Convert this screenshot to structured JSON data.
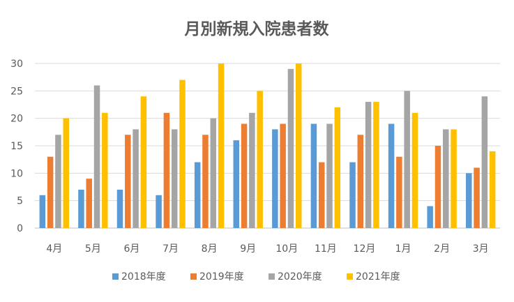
{
  "chart_data": {
    "type": "bar",
    "title": "月別新規入院患者数",
    "xlabel": "",
    "ylabel": "",
    "categories": [
      "4月",
      "5月",
      "6月",
      "7月",
      "8月",
      "9月",
      "10月",
      "11月",
      "12月",
      "1月",
      "2月",
      "3月"
    ],
    "series": [
      {
        "name": "2018年度",
        "color": "#5b9bd5",
        "values": [
          6,
          7,
          7,
          6,
          12,
          16,
          18,
          19,
          12,
          19,
          4,
          10
        ]
      },
      {
        "name": "2019年度",
        "color": "#ed7d31",
        "values": [
          13,
          9,
          17,
          21,
          17,
          19,
          19,
          12,
          17,
          13,
          15,
          11
        ]
      },
      {
        "name": "2020年度",
        "color": "#a5a5a5",
        "values": [
          17,
          26,
          18,
          18,
          20,
          21,
          29,
          19,
          23,
          25,
          18,
          24
        ]
      },
      {
        "name": "2021年度",
        "color": "#ffc000",
        "values": [
          20,
          21,
          24,
          27,
          30,
          25,
          30,
          22,
          23,
          21,
          18,
          14
        ]
      }
    ],
    "ylim": [
      0,
      30
    ],
    "yticks": [
      0,
      5,
      10,
      15,
      20,
      25,
      30
    ],
    "grid": true,
    "legend_position": "bottom"
  }
}
